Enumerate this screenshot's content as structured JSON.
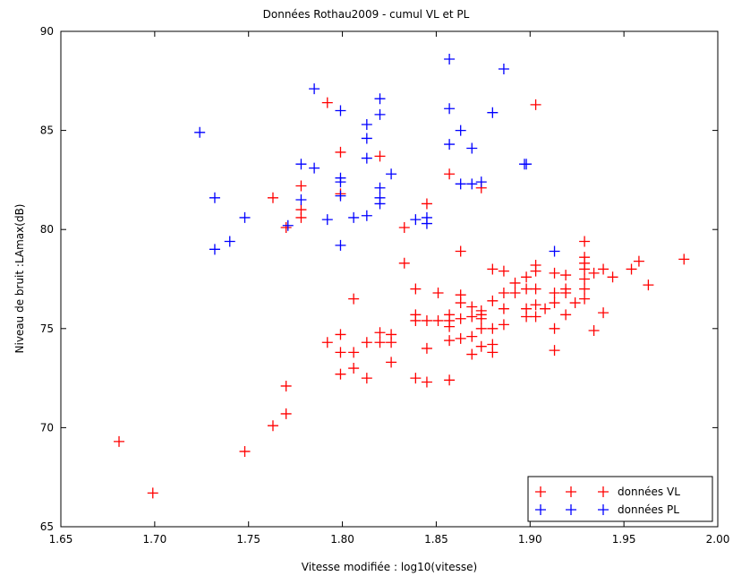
{
  "chart_data": {
    "type": "scatter",
    "title": "Données Rothau2009 - cumul VL et PL",
    "xlabel": "Vitesse modifiée : log10(vitesse)",
    "ylabel": "Niveau de bruit :LAmax(dB)",
    "xlim": [
      1.65,
      2.0
    ],
    "ylim": [
      65,
      90
    ],
    "xticks": [
      "1.65",
      "1.70",
      "1.75",
      "1.80",
      "1.85",
      "1.90",
      "1.95",
      "2.00"
    ],
    "yticks": [
      "65",
      "70",
      "75",
      "80",
      "85",
      "90"
    ],
    "grid": false,
    "legend_position": "bottom-right",
    "series": [
      {
        "name": "données VL",
        "color": "#ff0000",
        "marker": "plus",
        "points": [
          [
            1.681,
            69.3
          ],
          [
            1.699,
            66.7
          ],
          [
            1.748,
            68.8
          ],
          [
            1.763,
            70.1
          ],
          [
            1.77,
            70.7
          ],
          [
            1.77,
            72.1
          ],
          [
            1.77,
            80.1
          ],
          [
            1.763,
            81.6
          ],
          [
            1.778,
            80.6
          ],
          [
            1.778,
            81.0
          ],
          [
            1.778,
            82.2
          ],
          [
            1.792,
            74.3
          ],
          [
            1.792,
            86.4
          ],
          [
            1.799,
            72.7
          ],
          [
            1.799,
            73.8
          ],
          [
            1.799,
            74.7
          ],
          [
            1.799,
            81.8
          ],
          [
            1.799,
            83.9
          ],
          [
            1.806,
            73.0
          ],
          [
            1.806,
            73.8
          ],
          [
            1.806,
            76.5
          ],
          [
            1.813,
            72.5
          ],
          [
            1.813,
            74.3
          ],
          [
            1.82,
            74.3
          ],
          [
            1.82,
            74.8
          ],
          [
            1.82,
            83.7
          ],
          [
            1.826,
            73.3
          ],
          [
            1.826,
            74.3
          ],
          [
            1.826,
            74.7
          ],
          [
            1.833,
            78.3
          ],
          [
            1.833,
            80.1
          ],
          [
            1.839,
            72.5
          ],
          [
            1.839,
            75.4
          ],
          [
            1.839,
            75.7
          ],
          [
            1.839,
            77.0
          ],
          [
            1.845,
            72.3
          ],
          [
            1.845,
            74.0
          ],
          [
            1.845,
            75.4
          ],
          [
            1.845,
            81.3
          ],
          [
            1.851,
            75.4
          ],
          [
            1.851,
            76.8
          ],
          [
            1.857,
            72.4
          ],
          [
            1.857,
            74.4
          ],
          [
            1.857,
            75.1
          ],
          [
            1.857,
            75.4
          ],
          [
            1.857,
            75.7
          ],
          [
            1.857,
            82.8
          ],
          [
            1.863,
            74.5
          ],
          [
            1.863,
            75.5
          ],
          [
            1.863,
            76.3
          ],
          [
            1.863,
            76.7
          ],
          [
            1.863,
            78.9
          ],
          [
            1.869,
            73.7
          ],
          [
            1.869,
            74.6
          ],
          [
            1.869,
            75.6
          ],
          [
            1.869,
            76.1
          ],
          [
            1.874,
            74.1
          ],
          [
            1.874,
            75.0
          ],
          [
            1.874,
            75.5
          ],
          [
            1.874,
            75.7
          ],
          [
            1.874,
            75.9
          ],
          [
            1.874,
            82.1
          ],
          [
            1.88,
            73.8
          ],
          [
            1.88,
            74.2
          ],
          [
            1.88,
            75.0
          ],
          [
            1.88,
            76.4
          ],
          [
            1.88,
            78.0
          ],
          [
            1.886,
            75.2
          ],
          [
            1.886,
            76.0
          ],
          [
            1.886,
            76.8
          ],
          [
            1.886,
            77.9
          ],
          [
            1.892,
            76.8
          ],
          [
            1.892,
            77.3
          ],
          [
            1.898,
            75.6
          ],
          [
            1.898,
            76.0
          ],
          [
            1.898,
            77.0
          ],
          [
            1.898,
            77.6
          ],
          [
            1.903,
            75.6
          ],
          [
            1.903,
            76.2
          ],
          [
            1.903,
            77.0
          ],
          [
            1.903,
            77.9
          ],
          [
            1.903,
            78.2
          ],
          [
            1.903,
            86.3
          ],
          [
            1.908,
            76.0
          ],
          [
            1.913,
            73.9
          ],
          [
            1.913,
            75.0
          ],
          [
            1.913,
            76.3
          ],
          [
            1.913,
            76.8
          ],
          [
            1.913,
            77.8
          ],
          [
            1.919,
            75.7
          ],
          [
            1.919,
            76.8
          ],
          [
            1.919,
            77.0
          ],
          [
            1.919,
            77.7
          ],
          [
            1.924,
            76.3
          ],
          [
            1.929,
            76.5
          ],
          [
            1.929,
            77.0
          ],
          [
            1.929,
            77.5
          ],
          [
            1.929,
            78.0
          ],
          [
            1.929,
            78.3
          ],
          [
            1.929,
            78.6
          ],
          [
            1.929,
            79.4
          ],
          [
            1.934,
            74.9
          ],
          [
            1.934,
            77.8
          ],
          [
            1.939,
            75.8
          ],
          [
            1.939,
            78.0
          ],
          [
            1.944,
            77.6
          ],
          [
            1.954,
            78.0
          ],
          [
            1.958,
            78.4
          ],
          [
            1.963,
            77.2
          ],
          [
            1.982,
            78.5
          ]
        ]
      },
      {
        "name": "données PL",
        "color": "#0000ff",
        "marker": "plus",
        "points": [
          [
            1.724,
            84.9
          ],
          [
            1.732,
            79.0
          ],
          [
            1.732,
            81.6
          ],
          [
            1.74,
            79.4
          ],
          [
            1.748,
            80.6
          ],
          [
            1.771,
            80.2
          ],
          [
            1.778,
            81.5
          ],
          [
            1.778,
            83.3
          ],
          [
            1.785,
            83.1
          ],
          [
            1.785,
            87.1
          ],
          [
            1.792,
            80.5
          ],
          [
            1.799,
            79.2
          ],
          [
            1.799,
            81.7
          ],
          [
            1.799,
            82.4
          ],
          [
            1.799,
            82.6
          ],
          [
            1.799,
            86.0
          ],
          [
            1.806,
            80.6
          ],
          [
            1.813,
            80.7
          ],
          [
            1.813,
            83.6
          ],
          [
            1.813,
            84.6
          ],
          [
            1.813,
            85.3
          ],
          [
            1.82,
            81.3
          ],
          [
            1.82,
            81.6
          ],
          [
            1.82,
            82.1
          ],
          [
            1.82,
            85.8
          ],
          [
            1.82,
            86.6
          ],
          [
            1.826,
            82.8
          ],
          [
            1.839,
            80.5
          ],
          [
            1.845,
            80.3
          ],
          [
            1.845,
            80.6
          ],
          [
            1.857,
            84.3
          ],
          [
            1.857,
            86.1
          ],
          [
            1.857,
            88.6
          ],
          [
            1.863,
            82.3
          ],
          [
            1.863,
            85.0
          ],
          [
            1.869,
            82.3
          ],
          [
            1.869,
            84.1
          ],
          [
            1.874,
            82.4
          ],
          [
            1.88,
            85.9
          ],
          [
            1.886,
            88.1
          ],
          [
            1.897,
            83.3
          ],
          [
            1.898,
            83.3
          ],
          [
            1.913,
            78.9
          ]
        ]
      }
    ]
  }
}
